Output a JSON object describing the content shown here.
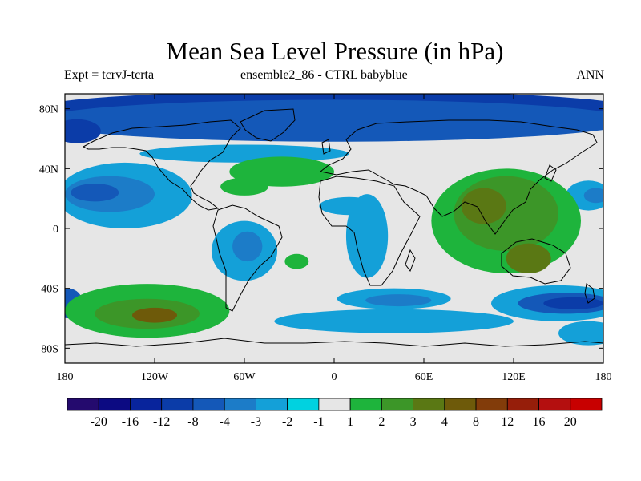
{
  "title": "Mean Sea Level Pressure (in hPa)",
  "subtitle_left": "Expt = tcrvJ-tcrta",
  "subtitle_center": "ensemble2_86 - CTRL babyblue",
  "subtitle_right": "ANN",
  "map_data": {
    "type": "filled-contour-map",
    "projection": "cylindrical-equidistant",
    "lon_range": [
      -180,
      180
    ],
    "lat_range": [
      -90,
      90
    ],
    "lat_ticks": [
      {
        "value": 80,
        "label": "80N"
      },
      {
        "value": 40,
        "label": "40N"
      },
      {
        "value": 0,
        "label": "0"
      },
      {
        "value": -40,
        "label": "40S"
      },
      {
        "value": -80,
        "label": "80S"
      }
    ],
    "lon_ticks": [
      {
        "value": -180,
        "label": "180"
      },
      {
        "value": -120,
        "label": "120W"
      },
      {
        "value": -60,
        "label": "60W"
      },
      {
        "value": 0,
        "label": "0"
      },
      {
        "value": 60,
        "label": "60E"
      },
      {
        "value": 120,
        "label": "120E"
      },
      {
        "value": 180,
        "label": "180"
      }
    ],
    "background_level": "-1 to 1",
    "features": [
      {
        "id": "arctic-low",
        "level": -8,
        "lat": 80,
        "lon": 0,
        "rlat": 12,
        "rlon": 200
      },
      {
        "id": "arctic-band",
        "level": -4,
        "lat": 72,
        "lon": 0,
        "rlat": 14,
        "rlon": 200
      },
      {
        "id": "north-pacific-low",
        "level": -8,
        "lat": 65,
        "lon": -172,
        "rlat": 8,
        "rlon": 16
      },
      {
        "id": "north-atlantic-band",
        "level": -2,
        "lat": 50,
        "lon": -60,
        "rlat": 6,
        "rlon": 70
      },
      {
        "id": "pacific-blue-west",
        "level": -2,
        "lat": 22,
        "lon": -140,
        "rlat": 22,
        "rlon": 45
      },
      {
        "id": "pacific-blue-core",
        "level": -3,
        "lat": 23,
        "lon": -150,
        "rlat": 12,
        "rlon": 30
      },
      {
        "id": "pacific-blue-inner",
        "level": -4,
        "lat": 24,
        "lon": -160,
        "rlat": 6,
        "rlon": 16
      },
      {
        "id": "south-america-low",
        "level": -2,
        "lat": -15,
        "lon": -60,
        "rlat": 20,
        "rlon": 22
      },
      {
        "id": "south-america-core",
        "level": -3,
        "lat": -12,
        "lon": -58,
        "rlat": 10,
        "rlon": 10
      },
      {
        "id": "africa-low",
        "level": -2,
        "lat": -5,
        "lon": 22,
        "rlat": 28,
        "rlon": 14
      },
      {
        "id": "sahara-low",
        "level": -2,
        "lat": 15,
        "lon": 10,
        "rlat": 6,
        "rlon": 20
      },
      {
        "id": "east-pacific-low",
        "level": -2,
        "lat": 22,
        "lon": 170,
        "rlat": 10,
        "rlon": 15
      },
      {
        "id": "east-pacific-core",
        "level": -3,
        "lat": 22,
        "lon": 175,
        "rlat": 5,
        "rlon": 8
      },
      {
        "id": "southern-ocean-band",
        "level": -2,
        "lat": -62,
        "lon": 40,
        "rlat": 8,
        "rlon": 80
      },
      {
        "id": "s-atlantic-low",
        "level": -2,
        "lat": -47,
        "lon": 40,
        "rlat": 7,
        "rlon": 38
      },
      {
        "id": "s-atlantic-core",
        "level": -3,
        "lat": -48,
        "lon": 43,
        "rlat": 4,
        "rlon": 22
      },
      {
        "id": "s-indian-low",
        "level": -2,
        "lat": -50,
        "lon": 150,
        "rlat": 12,
        "rlon": 45
      },
      {
        "id": "s-indian-core",
        "level": -4,
        "lat": -50,
        "lon": 155,
        "rlat": 7,
        "rlon": 32
      },
      {
        "id": "s-indian-inner",
        "level": -8,
        "lat": -50,
        "lon": 160,
        "rlat": 4,
        "rlon": 20
      },
      {
        "id": "far-se-low",
        "level": -2,
        "lat": -70,
        "lon": 170,
        "rlat": 8,
        "rlon": 20
      },
      {
        "id": "far-sw-low",
        "level": -4,
        "lat": -50,
        "lon": -178,
        "rlat": 10,
        "rlon": 10
      },
      {
        "id": "atlantic-high",
        "level": 1,
        "lat": 38,
        "lon": -35,
        "rlat": 10,
        "rlon": 35
      },
      {
        "id": "atlantic-high-west",
        "level": 1,
        "lat": 28,
        "lon": -60,
        "rlat": 6,
        "rlon": 16
      },
      {
        "id": "asia-high",
        "level": 1,
        "lat": 5,
        "lon": 115,
        "rlat": 35,
        "rlon": 50
      },
      {
        "id": "asia-high-mid",
        "level": 2,
        "lat": 10,
        "lon": 115,
        "rlat": 25,
        "rlon": 35
      },
      {
        "id": "asia-high-core",
        "level": 3,
        "lat": 15,
        "lon": 100,
        "rlat": 12,
        "rlon": 15
      },
      {
        "id": "australia-high",
        "level": 3,
        "lat": -20,
        "lon": 130,
        "rlat": 10,
        "rlon": 15
      },
      {
        "id": "sth-pacific-high",
        "level": 1,
        "lat": -55,
        "lon": -125,
        "rlat": 18,
        "rlon": 55
      },
      {
        "id": "sth-pacific-mid",
        "level": 2,
        "lat": -57,
        "lon": -125,
        "rlat": 10,
        "rlon": 35
      },
      {
        "id": "sth-pacific-core",
        "level": 4,
        "lat": -58,
        "lon": -120,
        "rlat": 5,
        "rlon": 15
      },
      {
        "id": "w-africa-high",
        "level": 1,
        "lat": -22,
        "lon": -25,
        "rlat": 5,
        "rlon": 8
      }
    ]
  },
  "colorbar": {
    "labels": [
      "-20",
      "-16",
      "-12",
      "-8",
      "-4",
      "-3",
      "-2",
      "-1",
      "1",
      "2",
      "3",
      "4",
      "8",
      "12",
      "16",
      "20"
    ],
    "colors": [
      "#240a6e",
      "#0c0a82",
      "#08249c",
      "#0b3ca8",
      "#1458b8",
      "#1c7cc8",
      "#14a0d8",
      "#00d2e0",
      "#e6e6e6",
      "#1eb43c",
      "#3c9628",
      "#5a7814",
      "#6e5a0a",
      "#823c0a",
      "#961e0a",
      "#b40f0f",
      "#c80000"
    ]
  }
}
